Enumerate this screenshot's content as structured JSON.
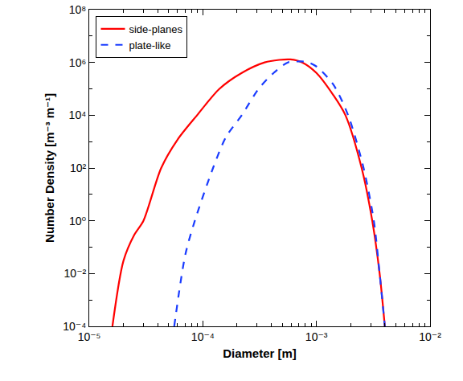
{
  "chart_data": {
    "type": "line",
    "x_label": "Diameter [m]",
    "y_label": "Number Density [m⁻³ m⁻¹]",
    "log": true,
    "grid": false,
    "legend": "upper left",
    "xlim": [
      1e-05,
      0.01
    ],
    "ylim": [
      0.0001,
      100000000
    ],
    "xticks": [
      {
        "value": 1e-05,
        "label": "10⁻⁵"
      },
      {
        "value": 0.0001,
        "label": "10⁻⁴"
      },
      {
        "value": 0.001,
        "label": "10⁻³"
      },
      {
        "value": 0.01,
        "label": "10⁻²"
      }
    ],
    "yticks": [
      {
        "value": 0.0001,
        "label": "10⁻⁴"
      },
      {
        "value": 0.01,
        "label": "10⁻²"
      },
      {
        "value": 1,
        "label": "10⁰"
      },
      {
        "value": 100,
        "label": "10²"
      },
      {
        "value": 10000,
        "label": "10⁴"
      },
      {
        "value": 1000000,
        "label": "10⁶"
      },
      {
        "value": 100000000,
        "label": "10⁸"
      }
    ],
    "series": [
      {
        "name": "side-planes",
        "color": "#ff0000",
        "line_style": "solid",
        "x": [
          1.6e-05,
          2e-05,
          2.5e-05,
          3e-05,
          4.3e-05,
          6e-05,
          8.9e-05,
          0.00014,
          0.00022,
          0.00035,
          0.00047,
          0.00059,
          0.00075,
          0.001,
          0.0014,
          0.0018,
          0.0025,
          0.0031,
          0.0036,
          0.004
        ],
        "values": [
          0.0001,
          0.03,
          0.3,
          1,
          100,
          1200,
          10000,
          100000,
          400000,
          1000000,
          1250000,
          1300000,
          1000000,
          400000,
          60000,
          10000,
          100,
          1,
          0.01,
          0.0001
        ]
      },
      {
        "name": "plate-like",
        "color": "#1a3cff",
        "line_style": "dash",
        "x": [
          5.6e-05,
          7e-05,
          8.5e-05,
          0.000123,
          0.00016,
          0.00022,
          0.00031,
          0.00042,
          0.00056,
          0.00066,
          0.00074,
          0.00085,
          0.001,
          0.0014,
          0.0019,
          0.0026,
          0.0032,
          0.0036,
          0.004
        ],
        "values": [
          0.0001,
          0.05,
          1,
          100,
          1500,
          10000,
          100000,
          400000,
          1000000,
          1080000,
          1100000,
          1000000,
          700000,
          150000,
          10000,
          100,
          1,
          0.01,
          0.0001
        ]
      }
    ]
  }
}
